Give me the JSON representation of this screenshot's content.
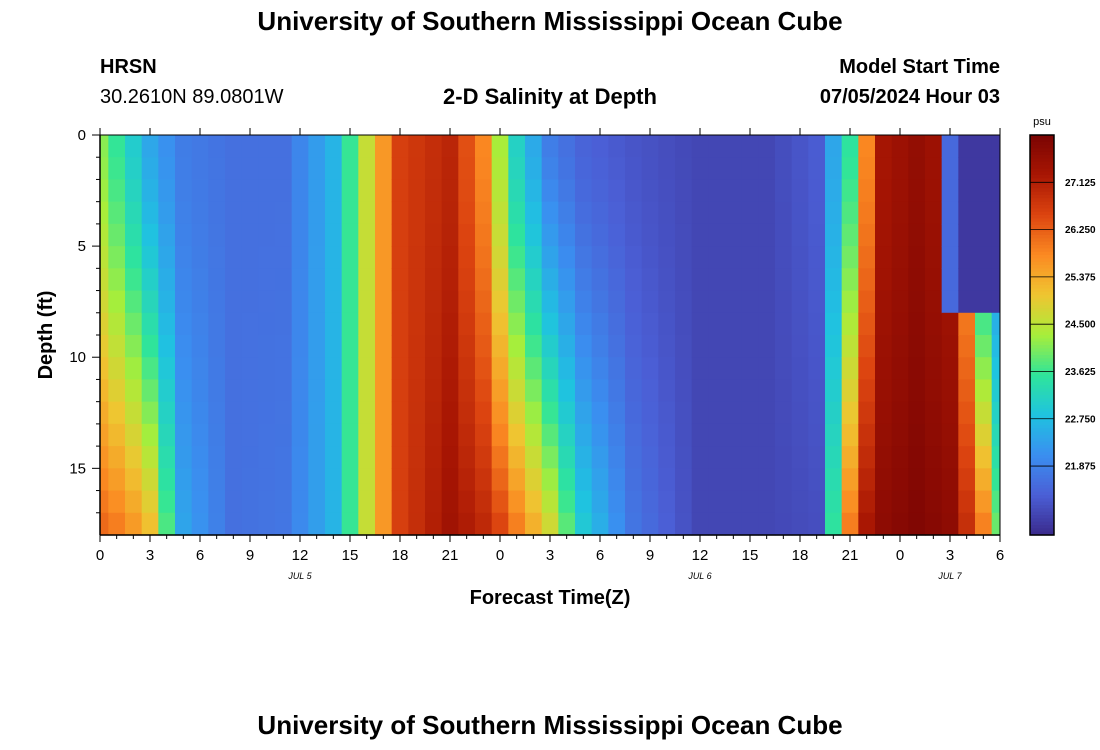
{
  "header": {
    "title": "University of Southern Mississippi Ocean Cube",
    "station": "HRSN",
    "coordinates": "30.2610N  89.0801W",
    "plot_title": "2-D Salinity at Depth",
    "model_start_label": "Model Start Time",
    "model_start_value": "07/05/2024 Hour 03"
  },
  "footer": {
    "title": "University of Southern Mississippi Ocean Cube"
  },
  "chart_data": {
    "type": "heatmap",
    "title": "2-D Salinity at Depth",
    "xlabel": "Forecast Time(Z)",
    "ylabel": "Depth (ft)",
    "x_range_hours_from_jul5_00z": [
      0,
      54
    ],
    "ylim": [
      0,
      18
    ],
    "y_reversed": true,
    "x_ticks": [
      "0",
      "3",
      "6",
      "9",
      "12",
      "15",
      "18",
      "21",
      "0",
      "3",
      "6",
      "9",
      "12",
      "15",
      "18",
      "21",
      "0",
      "3",
      "6"
    ],
    "y_ticks": [
      {
        "value": 0,
        "label": "0"
      },
      {
        "value": 5,
        "label": "5"
      },
      {
        "value": 10,
        "label": "10"
      },
      {
        "value": 15,
        "label": "15"
      }
    ],
    "date_labels": [
      {
        "hour": 12,
        "label": "JUL 5"
      },
      {
        "hour": 36,
        "label": "JUL 6"
      },
      {
        "hour": 51,
        "label": "JUL 7"
      }
    ],
    "colorbar": {
      "unit": "psu",
      "min": 20.6,
      "max": 28.0,
      "ticks": [
        {
          "value": 27.125,
          "label": "27.125"
        },
        {
          "value": 26.25,
          "label": "26.250"
        },
        {
          "value": 25.375,
          "label": "25.375"
        },
        {
          "value": 24.5,
          "label": "24.500"
        },
        {
          "value": 23.625,
          "label": "23.625"
        },
        {
          "value": 22.75,
          "label": "22.750"
        },
        {
          "value": 21.875,
          "label": "21.875"
        }
      ],
      "colors": [
        "#3a2a8c",
        "#4b5fd6",
        "#3a8ff0",
        "#1fc3e0",
        "#2fe59a",
        "#a8ee3a",
        "#efc531",
        "#fb8a22",
        "#dc4410",
        "#a81603",
        "#7a0403"
      ]
    },
    "dimensions": {
      "time_steps": 55,
      "depth_levels": 18,
      "time_step_hours": 1,
      "depth_step_ft": 1
    },
    "salinity_model": {
      "description": "Salinity (psu) sampled each hour from 0 to 54 and each foot from 0 to 18; near-surface and near-bottom profiles, interpolated linearly in between",
      "time_hours": [
        0,
        1.5,
        3,
        5,
        8,
        11,
        14,
        16,
        18,
        21,
        23,
        24,
        25,
        27,
        29,
        32,
        36,
        40,
        43,
        45,
        46,
        47,
        49,
        51,
        52,
        53,
        54
      ],
      "surface_psu": [
        24.1,
        23.3,
        22.4,
        21.8,
        21.6,
        21.6,
        22.6,
        24.6,
        26.6,
        27.0,
        25.8,
        24.3,
        23.1,
        21.8,
        21.4,
        21.2,
        21.0,
        21.0,
        21.3,
        23.5,
        25.8,
        27.3,
        27.6,
        27.3,
        25.5,
        22.5,
        21.8
      ],
      "bottom_psu": [
        26.2,
        25.9,
        25.2,
        22.4,
        21.6,
        21.7,
        22.6,
        24.6,
        26.6,
        27.4,
        27.0,
        26.6,
        26.0,
        24.8,
        23.0,
        21.7,
        21.0,
        21.0,
        21.1,
        26.0,
        27.3,
        27.7,
        27.9,
        27.7,
        26.9,
        26.0,
        24.0
      ],
      "fresh_pocket": {
        "time_hours": [
          51,
          54
        ],
        "depth_ft": [
          0.5,
          7.5
        ],
        "psu": 20.8
      }
    }
  }
}
